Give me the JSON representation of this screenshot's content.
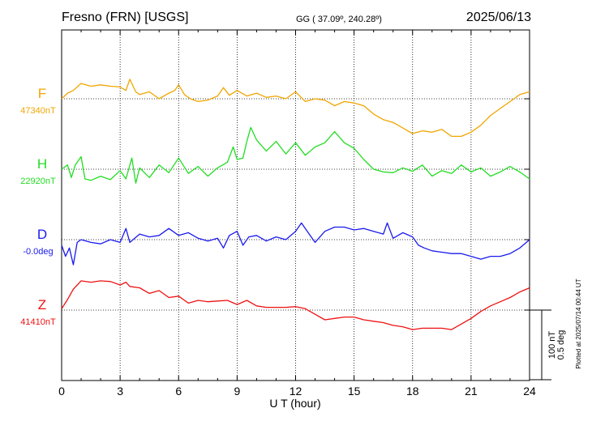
{
  "header": {
    "station": "Fresno (FRN)  [USGS]",
    "coords": "GG ( 37.09º, 240.28º)",
    "date": "2025/06/13"
  },
  "plotted_note": "Plotted at 2025/07/14 00:44 UT",
  "scale": {
    "nt": "100 nT",
    "deg": "0.5 deg"
  },
  "chart_data": {
    "type": "line",
    "title": "Fresno (FRN)  [USGS]",
    "xlabel": "U T (hour)",
    "xlim": [
      0,
      24
    ],
    "x_ticks": [
      "0",
      "3",
      "6",
      "9",
      "12",
      "15",
      "18",
      "21",
      "24"
    ],
    "grid": true,
    "series": [
      {
        "name": "F",
        "baseline_label": "47340nT",
        "color": "#f0a500",
        "baseline": 47340,
        "unit": "nT",
        "points": [
          [
            0,
            47340
          ],
          [
            0.3,
            47348
          ],
          [
            0.6,
            47352
          ],
          [
            1,
            47362
          ],
          [
            1.5,
            47358
          ],
          [
            2,
            47360
          ],
          [
            2.5,
            47358
          ],
          [
            3,
            47357
          ],
          [
            3.3,
            47352
          ],
          [
            3.5,
            47368
          ],
          [
            3.8,
            47350
          ],
          [
            4,
            47346
          ],
          [
            4.5,
            47350
          ],
          [
            5,
            47340
          ],
          [
            5.5,
            47348
          ],
          [
            5.8,
            47352
          ],
          [
            6,
            47360
          ],
          [
            6.3,
            47346
          ],
          [
            6.6,
            47340
          ],
          [
            7,
            47336
          ],
          [
            7.5,
            47338
          ],
          [
            8,
            47344
          ],
          [
            8.3,
            47356
          ],
          [
            8.6,
            47345
          ],
          [
            9,
            47352
          ],
          [
            9.5,
            47344
          ],
          [
            10,
            47348
          ],
          [
            10.5,
            47342
          ],
          [
            11,
            47344
          ],
          [
            11.5,
            47340
          ],
          [
            12,
            47350
          ],
          [
            12.5,
            47336
          ],
          [
            13,
            47340
          ],
          [
            13.5,
            47338
          ],
          [
            14,
            47330
          ],
          [
            14.5,
            47336
          ],
          [
            15,
            47334
          ],
          [
            15.5,
            47330
          ],
          [
            16,
            47318
          ],
          [
            16.5,
            47310
          ],
          [
            17,
            47306
          ],
          [
            17.5,
            47298
          ],
          [
            18,
            47290
          ],
          [
            18.5,
            47294
          ],
          [
            19,
            47292
          ],
          [
            19.5,
            47296
          ],
          [
            20,
            47286
          ],
          [
            20.5,
            47286
          ],
          [
            21,
            47292
          ],
          [
            21.5,
            47302
          ],
          [
            22,
            47316
          ],
          [
            22.5,
            47326
          ],
          [
            23,
            47336
          ],
          [
            23.5,
            47346
          ],
          [
            24,
            47350
          ]
        ]
      },
      {
        "name": "H",
        "baseline_label": "22920nT",
        "color": "#22dd22",
        "baseline": 22920,
        "unit": "nT",
        "points": [
          [
            0,
            22920
          ],
          [
            0.3,
            22926
          ],
          [
            0.5,
            22908
          ],
          [
            0.7,
            22926
          ],
          [
            1,
            22938
          ],
          [
            1.2,
            22906
          ],
          [
            1.5,
            22904
          ],
          [
            2,
            22910
          ],
          [
            2.5,
            22905
          ],
          [
            3,
            22918
          ],
          [
            3.3,
            22906
          ],
          [
            3.6,
            22936
          ],
          [
            3.8,
            22900
          ],
          [
            4,
            22922
          ],
          [
            4.5,
            22908
          ],
          [
            5,
            22926
          ],
          [
            5.5,
            22915
          ],
          [
            6,
            22936
          ],
          [
            6.5,
            22914
          ],
          [
            7,
            22924
          ],
          [
            7.5,
            22910
          ],
          [
            8,
            22922
          ],
          [
            8.5,
            22930
          ],
          [
            8.8,
            22952
          ],
          [
            9,
            22934
          ],
          [
            9.3,
            22936
          ],
          [
            9.5,
            22960
          ],
          [
            9.7,
            22980
          ],
          [
            10,
            22962
          ],
          [
            10.5,
            22946
          ],
          [
            11,
            22960
          ],
          [
            11.5,
            22942
          ],
          [
            12,
            22958
          ],
          [
            12.5,
            22940
          ],
          [
            13,
            22952
          ],
          [
            13.5,
            22958
          ],
          [
            14,
            22974
          ],
          [
            14.5,
            22958
          ],
          [
            15,
            22950
          ],
          [
            15.5,
            22934
          ],
          [
            16,
            22920
          ],
          [
            16.5,
            22916
          ],
          [
            17,
            22915
          ],
          [
            17.5,
            22922
          ],
          [
            18,
            22917
          ],
          [
            18.5,
            22926
          ],
          [
            19,
            22910
          ],
          [
            19.5,
            22918
          ],
          [
            20,
            22914
          ],
          [
            20.5,
            22926
          ],
          [
            21,
            22916
          ],
          [
            21.5,
            22922
          ],
          [
            22,
            22910
          ],
          [
            22.5,
            22916
          ],
          [
            23,
            22924
          ],
          [
            23.5,
            22916
          ],
          [
            24,
            22906
          ]
        ]
      },
      {
        "name": "D",
        "baseline_label": "-0.0deg",
        "color": "#1a1aee",
        "baseline": 0,
        "unit": "deg",
        "points": [
          [
            0,
            -0.04
          ],
          [
            0.2,
            -0.12
          ],
          [
            0.4,
            -0.06
          ],
          [
            0.6,
            -0.18
          ],
          [
            0.8,
            -0.02
          ],
          [
            1,
            0
          ],
          [
            1.5,
            -0.02
          ],
          [
            2,
            -0.03
          ],
          [
            2.5,
            0
          ],
          [
            3,
            -0.02
          ],
          [
            3.3,
            0.08
          ],
          [
            3.5,
            -0.02
          ],
          [
            4,
            0.04
          ],
          [
            4.5,
            0.02
          ],
          [
            5,
            0.03
          ],
          [
            5.5,
            0.08
          ],
          [
            6,
            0.03
          ],
          [
            6.5,
            0.05
          ],
          [
            7,
            0.01
          ],
          [
            7.5,
            -0.01
          ],
          [
            8,
            0.01
          ],
          [
            8.3,
            -0.06
          ],
          [
            8.6,
            0.03
          ],
          [
            9,
            0.06
          ],
          [
            9.3,
            -0.04
          ],
          [
            9.6,
            0.02
          ],
          [
            10,
            0.03
          ],
          [
            10.5,
            -0.01
          ],
          [
            11,
            0.02
          ],
          [
            11.5,
            0
          ],
          [
            12,
            0.06
          ],
          [
            12.3,
            0.12
          ],
          [
            12.6,
            0.06
          ],
          [
            13,
            -0.02
          ],
          [
            13.5,
            0.06
          ],
          [
            14,
            0.09
          ],
          [
            14.5,
            0.09
          ],
          [
            15,
            0.07
          ],
          [
            15.5,
            0.08
          ],
          [
            16,
            0.06
          ],
          [
            16.5,
            0.04
          ],
          [
            16.7,
            0.12
          ],
          [
            17,
            0.01
          ],
          [
            17.5,
            0.05
          ],
          [
            18,
            0.02
          ],
          [
            18.3,
            -0.04
          ],
          [
            18.6,
            -0.06
          ],
          [
            19,
            -0.08
          ],
          [
            19.5,
            -0.09
          ],
          [
            20,
            -0.1
          ],
          [
            20.5,
            -0.1
          ],
          [
            21,
            -0.12
          ],
          [
            21.5,
            -0.14
          ],
          [
            22,
            -0.12
          ],
          [
            22.5,
            -0.12
          ],
          [
            23,
            -0.1
          ],
          [
            23.5,
            -0.06
          ],
          [
            24,
            0
          ]
        ]
      },
      {
        "name": "Z",
        "baseline_label": "41410nT",
        "color": "#ee1111",
        "baseline": 41410,
        "unit": "nT",
        "points": [
          [
            0,
            41412
          ],
          [
            0.3,
            41425
          ],
          [
            0.6,
            41440
          ],
          [
            1,
            41452
          ],
          [
            1.5,
            41450
          ],
          [
            2,
            41452
          ],
          [
            2.5,
            41451
          ],
          [
            3,
            41446
          ],
          [
            3.3,
            41450
          ],
          [
            3.5,
            41444
          ],
          [
            4,
            41442
          ],
          [
            4.5,
            41434
          ],
          [
            5,
            41438
          ],
          [
            5.5,
            41428
          ],
          [
            6,
            41430
          ],
          [
            6.5,
            41420
          ],
          [
            7,
            41424
          ],
          [
            7.5,
            41422
          ],
          [
            8,
            41423
          ],
          [
            8.5,
            41424
          ],
          [
            9,
            41418
          ],
          [
            9.5,
            41424
          ],
          [
            10,
            41416
          ],
          [
            10.5,
            41414
          ],
          [
            11,
            41414
          ],
          [
            11.5,
            41414
          ],
          [
            12,
            41415
          ],
          [
            12.5,
            41412
          ],
          [
            13,
            41404
          ],
          [
            13.5,
            41396
          ],
          [
            14,
            41398
          ],
          [
            14.5,
            41400
          ],
          [
            15,
            41400
          ],
          [
            15.5,
            41396
          ],
          [
            16,
            41394
          ],
          [
            16.5,
            41392
          ],
          [
            17,
            41388
          ],
          [
            17.5,
            41386
          ],
          [
            18,
            41382
          ],
          [
            18.5,
            41384
          ],
          [
            19,
            41384
          ],
          [
            19.5,
            41384
          ],
          [
            20,
            41382
          ],
          [
            20.5,
            41390
          ],
          [
            21,
            41398
          ],
          [
            21.5,
            41408
          ],
          [
            22,
            41416
          ],
          [
            22.5,
            41422
          ],
          [
            23,
            41428
          ],
          [
            23.5,
            41436
          ],
          [
            24,
            41442
          ]
        ]
      }
    ]
  }
}
